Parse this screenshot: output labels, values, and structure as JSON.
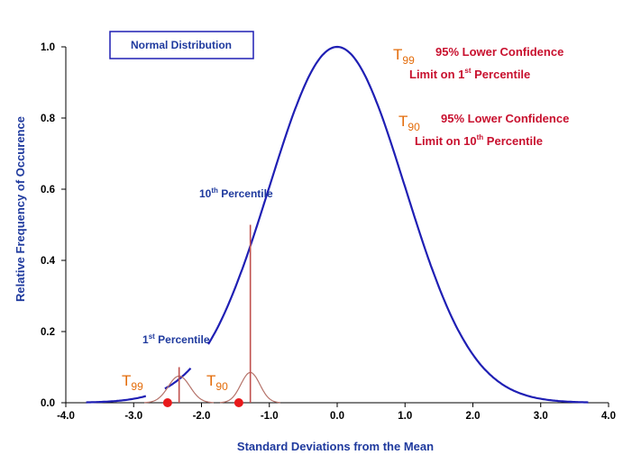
{
  "chart_data": {
    "type": "line",
    "title": "Normal Distribution",
    "xlabel": "Standard Deviations from the Mean",
    "ylabel": "Relative Frequency of Occurence",
    "xlim": [
      -4.0,
      4.0
    ],
    "ylim": [
      0.0,
      1.0
    ],
    "x_ticks": [
      "-4.0",
      "-3.0",
      "-2.0",
      "-1.0",
      "0.0",
      "1.0",
      "2.0",
      "3.0",
      "4.0"
    ],
    "y_ticks": [
      "0.0",
      "0.2",
      "0.4",
      "0.6",
      "0.8",
      "1.0"
    ],
    "grid": false,
    "curve": {
      "function": "exp(-x^2/2)",
      "x_from": -3.7,
      "x_to": 3.7,
      "gaps": [
        [
          -2.8,
          -2.55
        ],
        [
          -2.15,
          -1.9
        ]
      ],
      "color": "#1f1fb4"
    },
    "percentile_markers": [
      {
        "label": "1",
        "label_suffix": "st",
        "label_rest": " Percentile",
        "x": -2.33,
        "line_top": 0.1
      },
      {
        "label": "10",
        "label_suffix": "th",
        "label_rest": " Percentile",
        "x": -1.28,
        "line_top": 0.5
      }
    ],
    "sampling_peaks": [
      {
        "center": -2.33,
        "height": 0.075,
        "width": 0.16
      },
      {
        "center": -1.28,
        "height": 0.085,
        "width": 0.14
      }
    ],
    "confidence_points": [
      {
        "name": "T99",
        "x": -2.5,
        "y": 0.0
      },
      {
        "name": "T90",
        "x": -1.45,
        "y": 0.0
      }
    ],
    "annotations": [
      {
        "symbol": "T",
        "sub": "99",
        "line1": "95% Lower Confidence",
        "line2_pre": "Limit on 1",
        "line2_sup": "st",
        "line2_post": " Percentile"
      },
      {
        "symbol": "T",
        "sub": "90",
        "line1": "95% Lower Confidence",
        "line2_pre": "Limit on 10",
        "line2_sup": "th",
        "line2_post": " Percentile"
      }
    ],
    "point_labels": [
      {
        "symbol": "T",
        "sub": "99"
      },
      {
        "symbol": "T",
        "sub": "90"
      }
    ],
    "colors": {
      "curve": "#1f1fb4",
      "percentile_line": "#c0504d",
      "peak": "#b5736a",
      "point": "#e8191b",
      "annotation_text": "#c8102e",
      "t_symbol": "#e36c0a",
      "axis_text": "#1f3a9e"
    }
  }
}
